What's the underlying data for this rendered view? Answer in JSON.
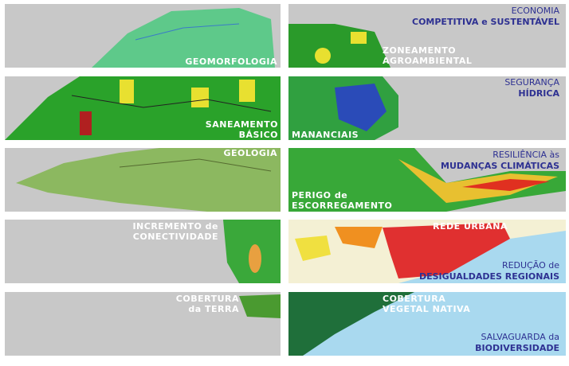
{
  "left": [
    {
      "label": [
        "GEOMORFOLOGIA"
      ]
    },
    {
      "label": [
        "SANEAMENTO",
        "BÁSICO"
      ]
    },
    {
      "label": [
        "GEOLOGIA"
      ]
    },
    {
      "label": [
        "INCREMENTO de",
        "CONECTIVIDADE"
      ]
    },
    {
      "label": [
        "COBERTURA",
        "da TERRA"
      ]
    }
  ],
  "right": [
    {
      "label": [
        "ZONEAMENTO",
        "AGROAMBIENTAL"
      ],
      "theme": [
        "ECONOMIA",
        "COMPETITIVA e SUSTENTÁVEL"
      ]
    },
    {
      "label": [
        "MANANCIAIS"
      ],
      "theme": [
        "SEGURANÇA",
        "HÍDRICA"
      ]
    },
    {
      "label": [
        "PERIGO de",
        "ESCORREGAMENTO"
      ],
      "theme": [
        "RESILIÊNCIA às",
        "MUDANÇAS CLIMÁTICAS"
      ]
    },
    {
      "label": [
        "REDE URBANA"
      ],
      "theme": [
        "REDUÇÃO de",
        "DESIGUALDADES REGIONAIS"
      ]
    },
    {
      "label": [
        "COBERTURA",
        "VEGETAL NATIVA"
      ],
      "theme": [
        "SALVAGUARDA da",
        "BIODIVERSIDADE"
      ]
    }
  ]
}
